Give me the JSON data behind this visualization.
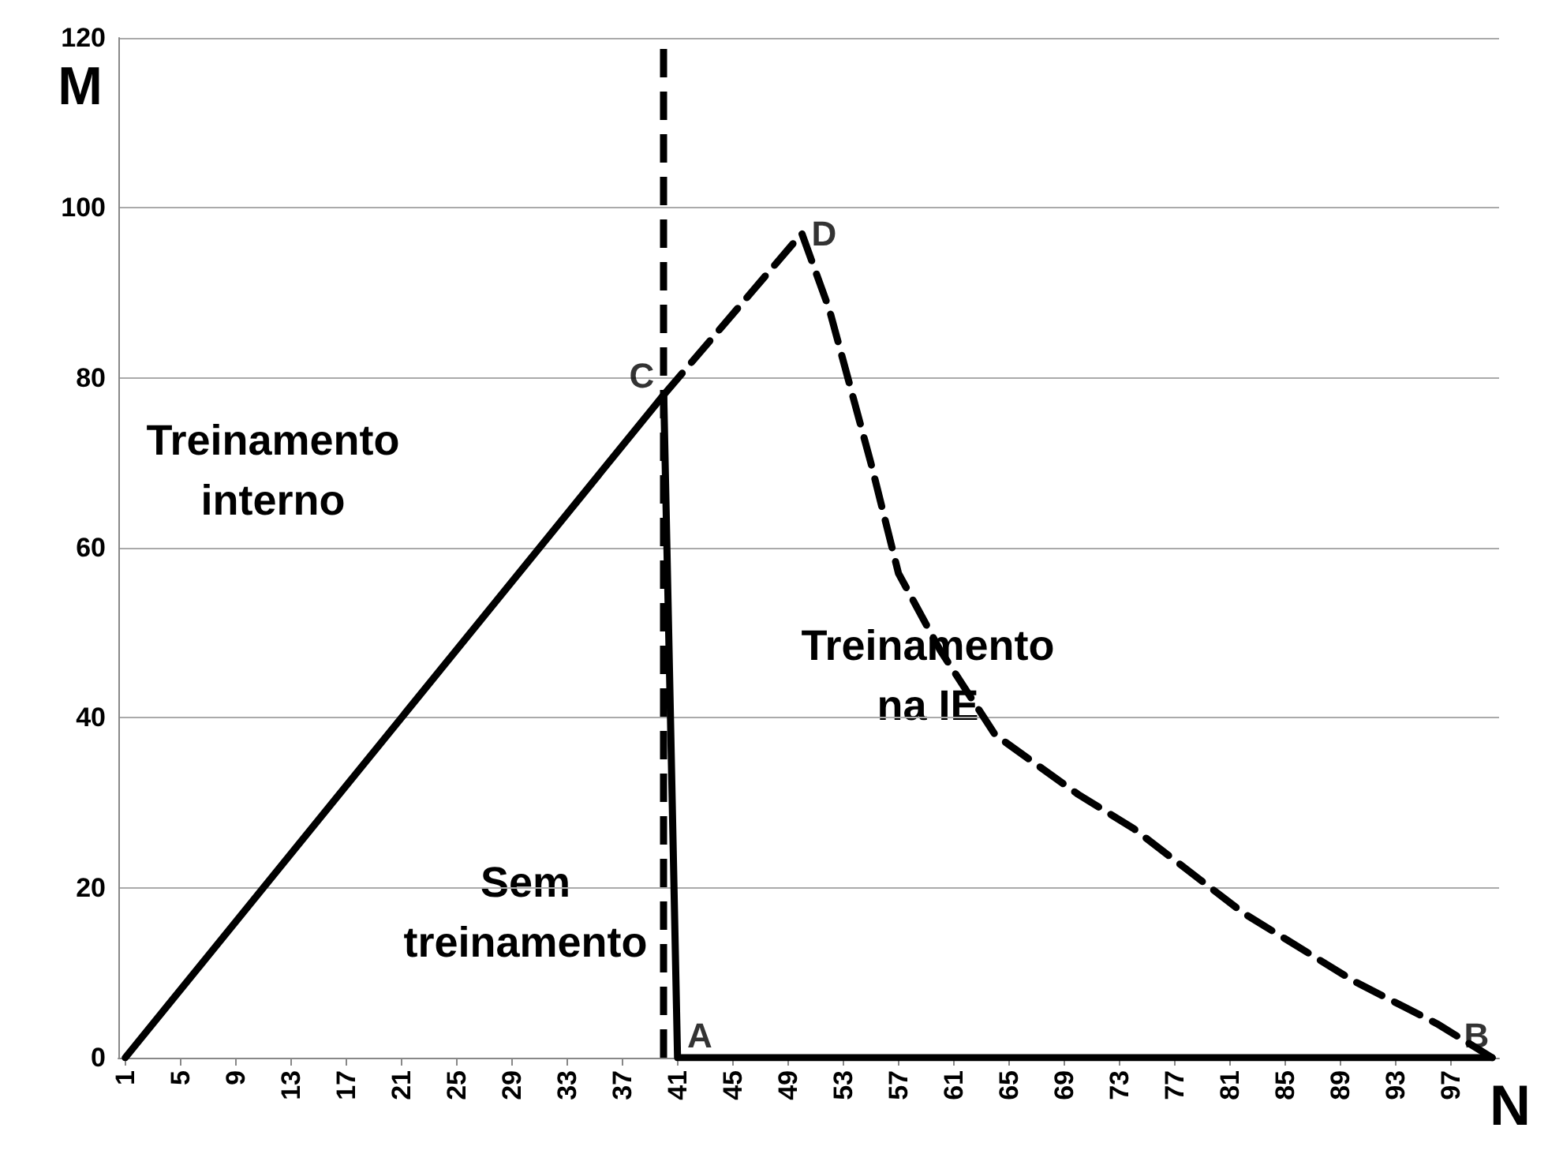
{
  "chart_data": {
    "type": "line",
    "xlabel": "N",
    "ylabel": "M",
    "xlim": [
      0.5,
      100.5
    ],
    "xticks": [
      1,
      5,
      9,
      13,
      17,
      21,
      25,
      29,
      33,
      37,
      41,
      45,
      49,
      53,
      57,
      61,
      65,
      69,
      73,
      77,
      81,
      85,
      89,
      93,
      97
    ],
    "series": [
      {
        "color": "#000000",
        "line_style": "solid",
        "x": [
          1,
          40,
          41,
          100
        ],
        "values": [
          0,
          78,
          0,
          0
        ]
      },
      {
        "color": "#000000",
        "line_style": "dashed",
        "x": [
          40,
          50,
          52,
          55,
          57,
          60,
          64,
          70,
          74,
          82,
          90,
          96,
          100
        ],
        "values": [
          78,
          97,
          88,
          70,
          57,
          48,
          38,
          31,
          27,
          17,
          9,
          4,
          0
        ]
      }
    ],
    "ylim": [
      0,
      120
    ],
    "yticks": [
      0,
      20,
      40,
      60,
      80,
      100,
      120
    ],
    "grid": "y",
    "marker": "none",
    "ref_lines": [
      {
        "axis": "x",
        "value": 40,
        "color": "#000000",
        "line_style": "dashed"
      }
    ],
    "annotations": [
      {
        "text": "C",
        "x": 40,
        "y": 78
      },
      {
        "text": "D",
        "x": 50,
        "y": 97
      },
      {
        "text": "A",
        "x": 41,
        "y": 0
      },
      {
        "text": "B",
        "x": 100,
        "y": 0
      },
      "Treinamento interno",
      "Treinamento na IE",
      "Sem treinamento"
    ]
  }
}
